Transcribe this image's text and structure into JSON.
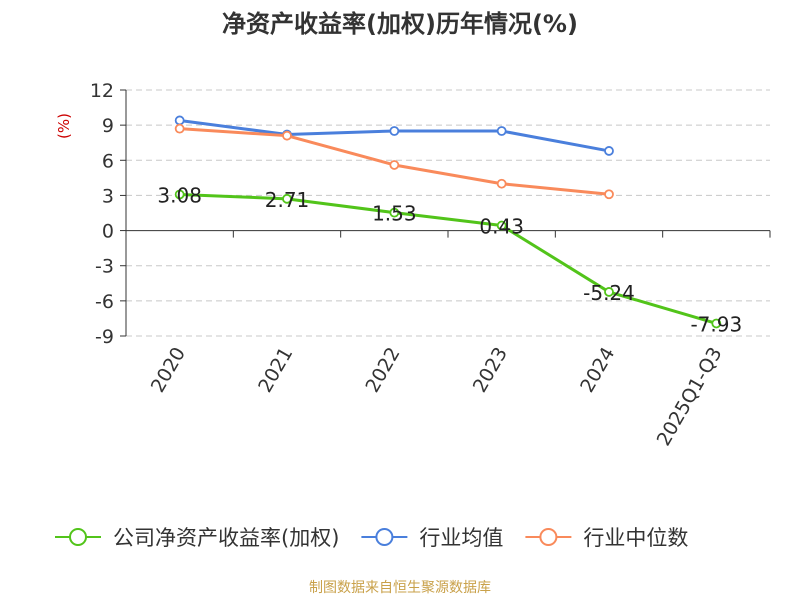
{
  "chart_data": {
    "type": "line",
    "title": "净资产收益率(加权)历年情况(%)",
    "ylabel": "(%)",
    "xlabel": "",
    "categories": [
      "2020",
      "2021",
      "2022",
      "2023",
      "2024",
      "2025Q1-Q3"
    ],
    "ylim": [
      -9,
      12
    ],
    "yticks": [
      12,
      9,
      6,
      3,
      0,
      -3,
      -6,
      -9
    ],
    "grid": true,
    "legend_position": "bottom",
    "series": [
      {
        "name": "公司净资产收益率(加权)",
        "color": "#52c41a",
        "values": [
          3.08,
          2.71,
          1.53,
          0.43,
          -5.24,
          -7.93
        ],
        "labels": [
          "3.08",
          "2.71",
          "1.53",
          "0.43",
          "-5.24",
          "-7.93"
        ]
      },
      {
        "name": "行业均值",
        "color": "#4a7fdc",
        "values": [
          9.4,
          8.2,
          8.5,
          8.5,
          6.8,
          null
        ]
      },
      {
        "name": "行业中位数",
        "color": "#f98a5b",
        "values": [
          8.7,
          8.1,
          5.6,
          4.0,
          3.1,
          null
        ]
      }
    ]
  },
  "source": "制图数据来自恒生聚源数据库",
  "colors": {
    "title": "#333333",
    "axis": "#333333",
    "grid": "#c8c8c8",
    "ylabel": "#cc0000",
    "source": "#c9a14a"
  }
}
